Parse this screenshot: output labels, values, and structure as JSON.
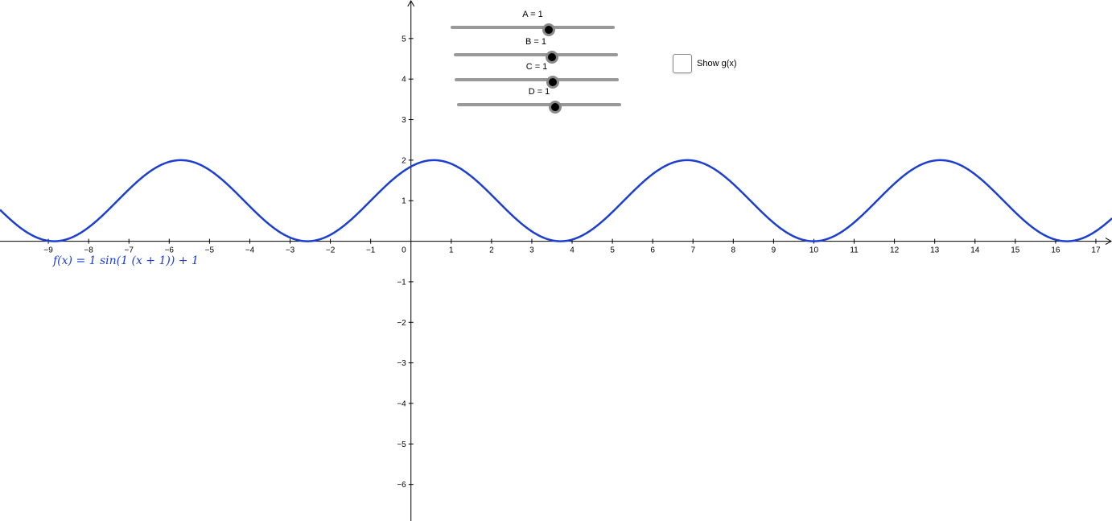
{
  "graph": {
    "x_range": [
      -10.2,
      17.4
    ],
    "y_range": [
      -6.9,
      5.95
    ],
    "x_ticks": [
      -9,
      -8,
      -7,
      -6,
      -5,
      -4,
      -3,
      -2,
      -1,
      1,
      2,
      3,
      4,
      5,
      6,
      7,
      8,
      9,
      10,
      11,
      12,
      13,
      14,
      15,
      16,
      17
    ],
    "y_ticks": [
      5,
      4,
      3,
      2,
      1,
      -1,
      -2,
      -3,
      -4,
      -5,
      -6
    ],
    "origin_label": "0",
    "function": {
      "label": "f(x) = 1 sin(1 (x + 1)) + 1",
      "color": "#1c3fd1",
      "A": 1,
      "B": 1,
      "C": 1,
      "D": 1
    }
  },
  "sliders": [
    {
      "name": "A",
      "label": "A = 1",
      "value": 1,
      "min": -5,
      "max": 5
    },
    {
      "name": "B",
      "label": "B = 1",
      "value": 1,
      "min": -5,
      "max": 5
    },
    {
      "name": "C",
      "label": "C = 1",
      "value": 1,
      "min": -5,
      "max": 5
    },
    {
      "name": "D",
      "label": "D = 1",
      "value": 1,
      "min": -5,
      "max": 5
    }
  ],
  "checkbox": {
    "label": "Show g(x)",
    "checked": false
  },
  "colors": {
    "axis": "#000000",
    "curve": "#1c3fd1",
    "slider_track": "#999999",
    "slider_handle": "#000000"
  }
}
